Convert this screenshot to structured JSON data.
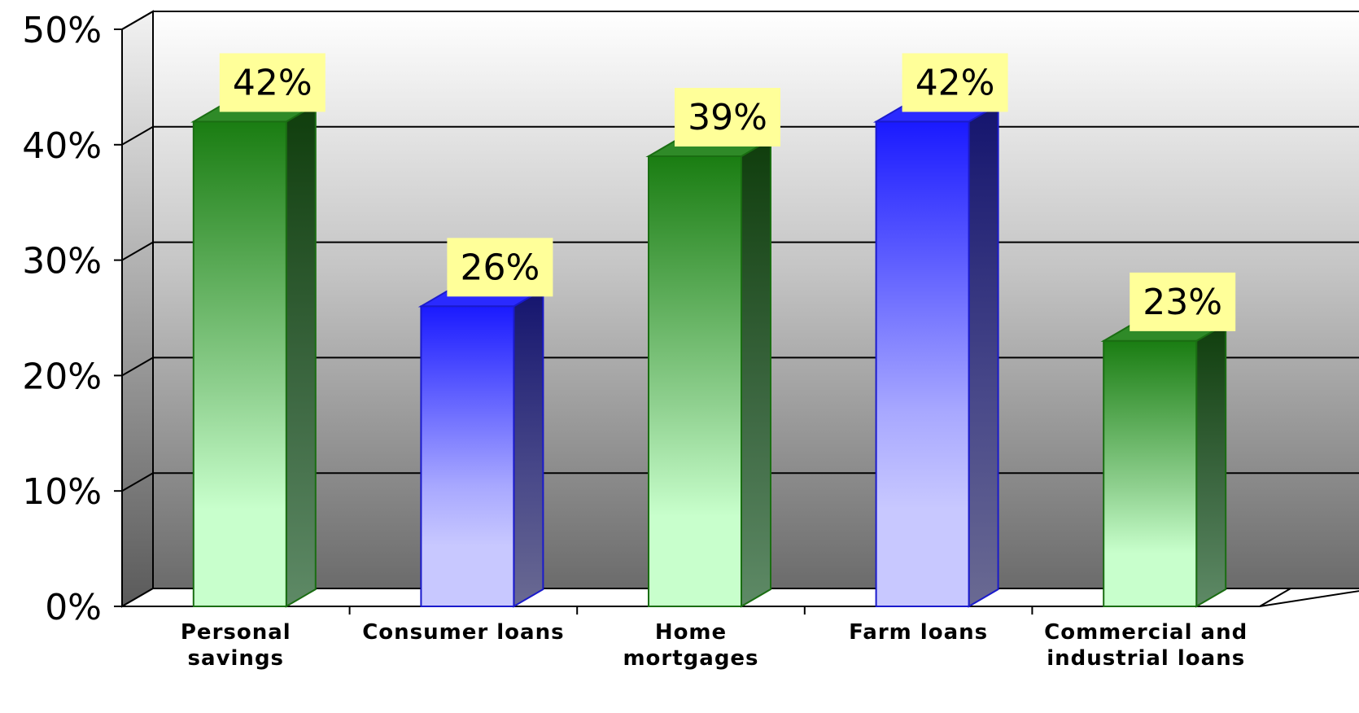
{
  "chart_data": {
    "type": "bar",
    "categories": [
      [
        "Personal",
        "savings"
      ],
      [
        "Consumer loans"
      ],
      [
        "Home",
        "mortgages"
      ],
      [
        "Farm loans"
      ],
      [
        "Commercial and",
        "industrial loans"
      ]
    ],
    "values": [
      42,
      26,
      39,
      42,
      23
    ],
    "data_labels": [
      "42%",
      "26%",
      "39%",
      "42%",
      "23%"
    ],
    "bar_colors": [
      "green",
      "blue",
      "green",
      "blue",
      "green"
    ],
    "ylim": [
      0,
      50
    ],
    "yticks": [
      0,
      10,
      20,
      30,
      40,
      50
    ],
    "ytick_labels": [
      "0%",
      "10%",
      "20%",
      "30%",
      "40%",
      "50%"
    ],
    "grid": true,
    "style": "3d-column",
    "legend": "none",
    "colors": {
      "green_dark": "#1a7d12",
      "green_light": "#c8ffcc",
      "blue_dark": "#1a1aff",
      "blue_light": "#c8c8ff",
      "label_bg": "#ffff99",
      "wall_top": "#ffffff",
      "wall_bottom": "#6b6b6b"
    }
  }
}
